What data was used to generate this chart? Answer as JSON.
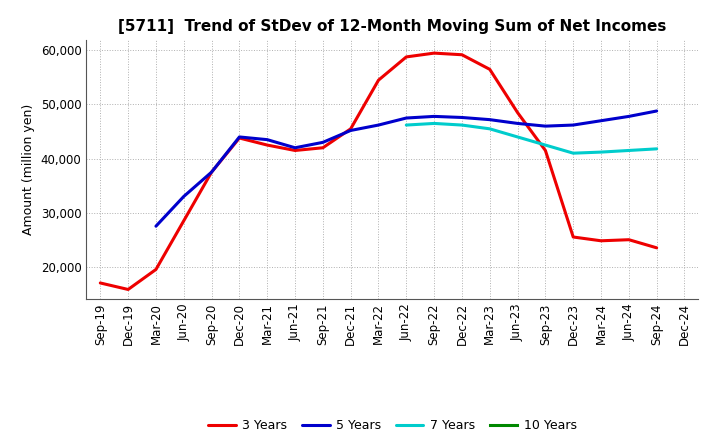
{
  "title": "[5711]  Trend of StDev of 12-Month Moving Sum of Net Incomes",
  "ylabel": "Amount (million yen)",
  "background_color": "#ffffff",
  "grid_color": "#b0b0b0",
  "ylim": [
    14000,
    62000
  ],
  "yticks": [
    20000,
    30000,
    40000,
    50000,
    60000
  ],
  "series": {
    "3 Years": {
      "color": "#ee0000",
      "data": [
        17000,
        15800,
        19500,
        28500,
        37500,
        43800,
        42500,
        41500,
        42000,
        45500,
        54500,
        58800,
        59500,
        59200,
        56500,
        48500,
        41500,
        25500,
        24800,
        25000,
        23500,
        null
      ]
    },
    "5 Years": {
      "color": "#0000cc",
      "data": [
        null,
        null,
        27500,
        33000,
        37500,
        44000,
        43500,
        42000,
        43000,
        45200,
        46200,
        47500,
        47800,
        47600,
        47200,
        46500,
        46000,
        46200,
        47000,
        47800,
        48800,
        null
      ]
    },
    "7 Years": {
      "color": "#00cccc",
      "data": [
        null,
        null,
        null,
        null,
        null,
        null,
        null,
        null,
        null,
        null,
        null,
        46200,
        46500,
        46200,
        45500,
        44000,
        42500,
        41000,
        41200,
        41500,
        41800,
        null
      ]
    },
    "10 Years": {
      "color": "#008800",
      "data": [
        null,
        null,
        null,
        null,
        null,
        null,
        null,
        null,
        null,
        null,
        null,
        null,
        null,
        null,
        null,
        null,
        null,
        null,
        null,
        null,
        null,
        null
      ]
    }
  },
  "xtick_labels": [
    "Sep-19",
    "Dec-19",
    "Mar-20",
    "Jun-20",
    "Sep-20",
    "Dec-20",
    "Mar-21",
    "Jun-21",
    "Sep-21",
    "Dec-21",
    "Mar-22",
    "Jun-22",
    "Sep-22",
    "Dec-22",
    "Mar-23",
    "Jun-23",
    "Sep-23",
    "Dec-23",
    "Mar-24",
    "Jun-24",
    "Sep-24",
    "Dec-24"
  ],
  "legend_order": [
    "3 Years",
    "5 Years",
    "7 Years",
    "10 Years"
  ],
  "title_fontsize": 11,
  "ylabel_fontsize": 9,
  "tick_fontsize": 8.5,
  "legend_fontsize": 9,
  "line_width": 2.2
}
